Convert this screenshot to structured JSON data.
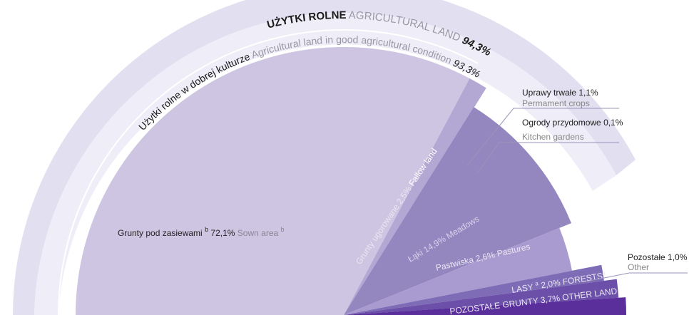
{
  "chart_data": {
    "type": "pie",
    "title": "",
    "colors": {
      "outer_ring": "#e2dff0",
      "middle_ring": "#efedf7",
      "sown": "#cdc5e1",
      "fallow": "#b3a7d3",
      "meadows": "#9487c0",
      "pastures": "#a99ad0",
      "permanent": "#7e6cb6",
      "forests": "#6b4fa8",
      "other_land": "#5a2f9c",
      "callout_line": "#9b93b8"
    },
    "outer_ring": {
      "name_pl": "UŻYTKI ROLNE",
      "name_en": "AGRICULTURAL LAND",
      "value": 94.3,
      "value_label": "94,3%"
    },
    "middle_ring": {
      "name_pl": "Użytki rolne w dobrej kulturze",
      "name_en": "Agricultural land in good agricultural condition",
      "value": 93.3,
      "value_label": "93,3%"
    },
    "slices": [
      {
        "key": "sown",
        "name_pl": "Grunty pod zasiewami",
        "sup_pl": "b",
        "value": 72.1,
        "value_label": "72,1%",
        "name_en": "Sown area",
        "sup_en": "b"
      },
      {
        "key": "fallow",
        "name_pl": "Grunty ugorowane",
        "value": 2.5,
        "value_label": "2,5%",
        "name_en": "Fallow land"
      },
      {
        "key": "meadows",
        "name_pl": "Łąki",
        "value": 14.9,
        "value_label": "14,9%",
        "name_en": "Meadows"
      },
      {
        "key": "pastures",
        "name_pl": "Pastwiska",
        "value": 2.6,
        "value_label": "2,6%",
        "name_en": "Pastures"
      },
      {
        "key": "permanent",
        "name_pl": "Uprawy trwałe",
        "value": 1.1,
        "value_label": "1,1%",
        "name_en": "Permament crops"
      },
      {
        "key": "kitchen",
        "name_pl": "Ogrody przydomowe",
        "value": 0.1,
        "value_label": "0,1%",
        "name_en": "Kitchen gardens"
      },
      {
        "key": "other_agri",
        "name_pl": "Pozostałe",
        "value": 1.0,
        "value_label": "1,0%",
        "name_en": "Other"
      },
      {
        "key": "forests",
        "name_pl": "LASY",
        "sup_pl": "a",
        "value": 2.0,
        "value_label": "2,0%",
        "name_en": "FORESTS",
        "sup_en": "a"
      },
      {
        "key": "other_land",
        "name_pl": "POZOSTAŁE GRUNTY",
        "value": 3.7,
        "value_label": "3,7%",
        "name_en": "OTHER LAND"
      }
    ]
  }
}
